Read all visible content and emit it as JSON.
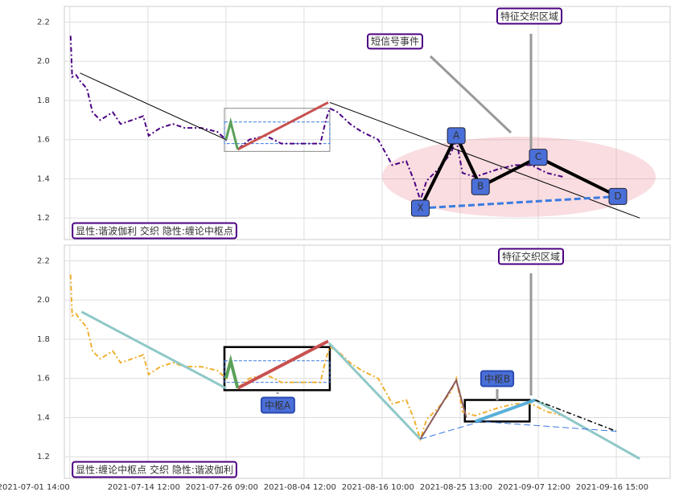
{
  "chart_data": [
    {
      "type": "line",
      "ylim": [
        1.09,
        2.28
      ],
      "xlim": [
        -7,
        769
      ],
      "yticks": [
        1.2,
        1.4,
        1.6,
        1.8,
        {
          "value": 2,
          "label": "2.0"
        },
        2.2
      ],
      "xticks": [
        0,
        100,
        200,
        300,
        400,
        500,
        600,
        700
      ],
      "grid": true,
      "series": [
        {
          "color": "#4b0082",
          "style": "dashdot",
          "width": 2,
          "x": [
            1,
            3,
            8,
            13,
            22,
            29,
            39,
            55,
            65,
            80,
            94,
            101,
            116,
            132,
            147,
            168,
            189,
            200,
            206,
            215,
            230,
            251,
            271,
            302,
            321,
            328,
            333,
            343,
            359,
            374,
            395,
            413,
            431,
            441,
            449,
            457,
            472,
            488,
            495,
            503,
            519,
            534,
            549,
            570,
            591,
            611,
            632
          ],
          "values": [
            2.13,
            1.92,
            1.93,
            1.9,
            1.86,
            1.74,
            1.7,
            1.74,
            1.68,
            1.7,
            1.72,
            1.62,
            1.66,
            1.68,
            1.66,
            1.66,
            1.64,
            1.6,
            1.69,
            1.55,
            1.6,
            1.62,
            1.58,
            1.58,
            1.58,
            1.7,
            1.76,
            1.74,
            1.68,
            1.64,
            1.6,
            1.47,
            1.49,
            1.39,
            1.29,
            1.39,
            1.45,
            1.53,
            1.6,
            1.43,
            1.41,
            1.43,
            1.45,
            1.47,
            1.47,
            1.43,
            1.41
          ]
        },
        {
          "color": "#000000",
          "style": "solid",
          "width": 1,
          "x": [
            13,
            200
          ],
          "values": [
            1.94,
            1.6
          ]
        },
        {
          "color": "#000000",
          "style": "solid",
          "width": 1,
          "x": [
            333,
            730
          ],
          "values": [
            1.79,
            1.2
          ]
        },
        {
          "color": "#c85050",
          "style": "solid",
          "width": 3,
          "x": [
            215,
            331
          ],
          "values": [
            1.55,
            1.79
          ]
        },
        {
          "color": "#5aa05a",
          "style": "solid",
          "width": 3,
          "x": [
            200,
            206,
            215
          ],
          "values": [
            1.6,
            1.69,
            1.55
          ]
        },
        {
          "color": "#3a7be0",
          "style": "dashed",
          "width": 3,
          "x": [
            449,
            495,
            526,
            600,
            702,
            449
          ],
          "values": [
            1.25,
            1.62,
            1.36,
            1.51,
            1.31,
            1.25
          ]
        },
        {
          "color": "#000000",
          "style": "solid",
          "width": 4,
          "x": [
            449,
            495,
            526,
            600,
            702
          ],
          "values": [
            1.25,
            1.62,
            1.36,
            1.51,
            1.31
          ]
        }
      ],
      "boxes": [
        {
          "color": "#888888",
          "x": [
            198,
            333
          ],
          "y": [
            1.54,
            1.76
          ]
        },
        {
          "color": "#3a7be0",
          "x": [
            198,
            333
          ],
          "y": [
            1.58,
            1.69
          ]
        }
      ],
      "points": [
        {
          "label": "X",
          "x": 449,
          "y": 1.25
        },
        {
          "label": "A",
          "x": 495,
          "y": 1.62
        },
        {
          "label": "B",
          "x": 526,
          "y": 1.36
        },
        {
          "label": "C",
          "x": 600,
          "y": 1.51
        },
        {
          "label": "D",
          "x": 702,
          "y": 1.31
        }
      ],
      "annotations": [
        "短信号事件",
        "特征交织区域"
      ],
      "note": "显性:谐波伽利 交织 隐性:缠论中枢点"
    },
    {
      "type": "line",
      "ylim": [
        1.09,
        2.28
      ],
      "xlim": [
        -7,
        769
      ],
      "yticks": [
        1.2,
        1.4,
        1.6,
        1.8,
        {
          "value": 2,
          "label": "2.0"
        },
        2.2
      ],
      "xticks": [
        {
          "value": 0,
          "label": "2021-07-01 14:00"
        },
        {
          "value": 100,
          "label": "2021-07-14 12:00"
        },
        {
          "value": 200,
          "label": "2021-07-26 09:00"
        },
        {
          "value": 300,
          "label": "2021-08-04 12:00"
        },
        {
          "value": 400,
          "label": "2021-08-16 10:00"
        },
        {
          "value": 500,
          "label": "2021-08-25 13:00"
        },
        {
          "value": 600,
          "label": "2021-09-07 12:00"
        },
        {
          "value": 700,
          "label": "2021-09-16 15:00"
        }
      ],
      "grid": true,
      "series": [
        {
          "color": "#f0b030",
          "style": "dashdot",
          "width": 2,
          "x": [
            1,
            3,
            8,
            13,
            22,
            29,
            39,
            55,
            65,
            80,
            94,
            101,
            116,
            132,
            147,
            168,
            189,
            200,
            206,
            215,
            230,
            251,
            271,
            302,
            321,
            328,
            333,
            343,
            359,
            374,
            395,
            413,
            431,
            441,
            449,
            457,
            472,
            488,
            495,
            503,
            519,
            534,
            549,
            570,
            591,
            611,
            632
          ],
          "values": [
            2.13,
            1.92,
            1.93,
            1.9,
            1.86,
            1.74,
            1.7,
            1.74,
            1.68,
            1.7,
            1.72,
            1.62,
            1.66,
            1.68,
            1.66,
            1.66,
            1.64,
            1.6,
            1.69,
            1.55,
            1.6,
            1.62,
            1.58,
            1.58,
            1.58,
            1.7,
            1.76,
            1.74,
            1.68,
            1.64,
            1.6,
            1.47,
            1.49,
            1.39,
            1.29,
            1.39,
            1.45,
            1.53,
            1.6,
            1.43,
            1.41,
            1.43,
            1.45,
            1.47,
            1.47,
            1.43,
            1.41
          ]
        },
        {
          "color": "#8fc8c8",
          "style": "solid",
          "width": 3,
          "x": [
            15,
            200
          ],
          "values": [
            1.94,
            1.55
          ]
        },
        {
          "color": "#c85050",
          "style": "solid",
          "width": 4,
          "x": [
            215,
            331
          ],
          "values": [
            1.55,
            1.79
          ]
        },
        {
          "color": "#5aa05a",
          "style": "solid",
          "width": 4,
          "x": [
            200,
            206,
            215
          ],
          "values": [
            1.6,
            1.69,
            1.55
          ]
        },
        {
          "color": "#8fc8c8",
          "style": "solid",
          "width": 3,
          "x": [
            332,
            449
          ],
          "values": [
            1.78,
            1.29
          ]
        },
        {
          "color": "#8b5a5a",
          "style": "solid",
          "width": 2,
          "x": [
            449,
            495,
            508
          ],
          "values": [
            1.29,
            1.59,
            1.4
          ]
        },
        {
          "color": "#5ab0d8",
          "style": "solid",
          "width": 4,
          "x": [
            519,
            596
          ],
          "values": [
            1.38,
            1.49
          ]
        },
        {
          "color": "#8fc8c8",
          "style": "solid",
          "width": 3,
          "x": [
            596,
            730
          ],
          "values": [
            1.49,
            1.19
          ]
        },
        {
          "color": "#000000",
          "style": "dashdot",
          "width": 1.5,
          "x": [
            596,
            700
          ],
          "values": [
            1.49,
            1.33
          ]
        },
        {
          "color": "#3a7be0",
          "style": "dashed",
          "width": 1,
          "x": [
            449,
            526,
            700
          ],
          "values": [
            1.29,
            1.38,
            1.33
          ]
        }
      ],
      "boxes": [
        {
          "color": "#000000",
          "x": [
            198,
            333
          ],
          "y": [
            1.54,
            1.76
          ]
        },
        {
          "color": "#3a7be0",
          "x": [
            198,
            333
          ],
          "y": [
            1.58,
            1.69
          ]
        },
        {
          "color": "#000000",
          "x": [
            506,
            589
          ],
          "y": [
            1.38,
            1.49
          ]
        }
      ],
      "points": [],
      "annotations": [
        "中枢A",
        "中枢B",
        "特征交织区域"
      ],
      "note": "显性:缠论中枢点 交织 隐性:谐波伽利"
    }
  ]
}
